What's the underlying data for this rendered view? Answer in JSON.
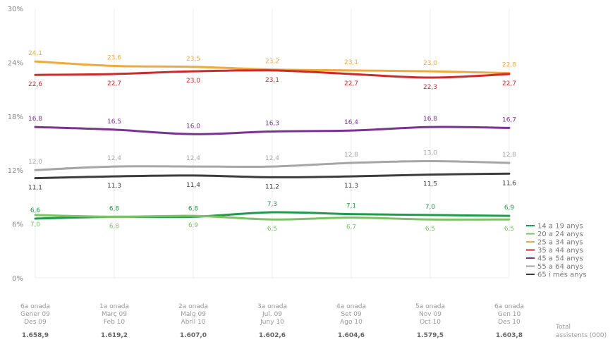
{
  "chart_data": {
    "type": "line",
    "title": "",
    "xlabel": "",
    "ylabel": "",
    "ylim": [
      0,
      30
    ],
    "y_ticks": [
      "0%",
      "6%",
      "12%",
      "18%",
      "24%",
      "30%"
    ],
    "y_tick_values": [
      0,
      6,
      12,
      18,
      24,
      30
    ],
    "grid": "vertical",
    "legend_position": "right",
    "categories": [
      {
        "lines": [
          "6a onada",
          "Gener 09",
          "Des 09"
        ],
        "total": "1.658,9"
      },
      {
        "lines": [
          "1a onada",
          "Març 09",
          "Feb 10"
        ],
        "total": "1.619,2"
      },
      {
        "lines": [
          "2a onada",
          "Maig 09",
          "Abril 10"
        ],
        "total": "1.607,0"
      },
      {
        "lines": [
          "3a onada",
          "Jul. 09",
          "Juny 10"
        ],
        "total": "1.602,6"
      },
      {
        "lines": [
          "4a onada",
          "Set 09",
          "Ago 10"
        ],
        "total": "1.604,6"
      },
      {
        "lines": [
          "5a onada",
          "Nov 09",
          "Oct 10"
        ],
        "total": "1.579,5"
      },
      {
        "lines": [
          "6a onada",
          "Gen 10",
          "Des 10"
        ],
        "total": "1.603,8"
      }
    ],
    "total_label": [
      "Total",
      "assistents (000)"
    ],
    "series": [
      {
        "name": "14 a 19 anys",
        "color": "#1f9b4b",
        "values": [
          6.6,
          6.8,
          6.8,
          7.3,
          7.1,
          7.0,
          6.9
        ],
        "labels": [
          "6,6",
          "6,8",
          "6,8",
          "7,3",
          "7,1",
          "7,0",
          "6,9"
        ],
        "label_pos": "above"
      },
      {
        "name": "20 a 24 anys",
        "color": "#7cc462",
        "values": [
          7.0,
          6.8,
          6.9,
          6.5,
          6.7,
          6.5,
          6.5
        ],
        "labels": [
          "7,0",
          "6,8",
          "6,9",
          "6,5",
          "6,7",
          "6,5",
          "6,5"
        ],
        "label_pos": "below"
      },
      {
        "name": "25 a 34 anys",
        "color": "#f2a93b",
        "values": [
          24.1,
          23.6,
          23.5,
          23.2,
          23.1,
          23.0,
          22.8
        ],
        "labels": [
          "24,1",
          "23,6",
          "23,5",
          "23,2",
          "23,1",
          "23,0",
          "22,8"
        ],
        "label_pos": "above"
      },
      {
        "name": "35 a 44 anys",
        "color": "#cc2b2b",
        "values": [
          22.6,
          22.7,
          23.0,
          23.1,
          22.7,
          22.3,
          22.7
        ],
        "labels": [
          "22,6",
          "22,7",
          "23,0",
          "23,1",
          "22,7",
          "22,3",
          "22,7"
        ],
        "label_pos": "below"
      },
      {
        "name": "45 a 54 anys",
        "color": "#7b3294",
        "values": [
          16.8,
          16.5,
          16.0,
          16.3,
          16.4,
          16.8,
          16.7
        ],
        "labels": [
          "16,8",
          "16,5",
          "16,0",
          "16,3",
          "16,4",
          "16,8",
          "16,7"
        ],
        "label_pos": "above"
      },
      {
        "name": "55 a 64 anys",
        "color": "#a6a6a6",
        "values": [
          12.0,
          12.4,
          12.4,
          12.4,
          12.8,
          13.0,
          12.8
        ],
        "labels": [
          "12,0",
          "12,4",
          "12,4",
          "12,4",
          "12,8",
          "13,0",
          "12,8"
        ],
        "label_pos": "above"
      },
      {
        "name": "65 i més anys",
        "color": "#3c3c3c",
        "values": [
          11.1,
          11.3,
          11.4,
          11.2,
          11.3,
          11.5,
          11.6
        ],
        "labels": [
          "11,1",
          "11,3",
          "11,4",
          "11,2",
          "11,3",
          "11,5",
          "11,6"
        ],
        "label_pos": "below"
      }
    ]
  }
}
